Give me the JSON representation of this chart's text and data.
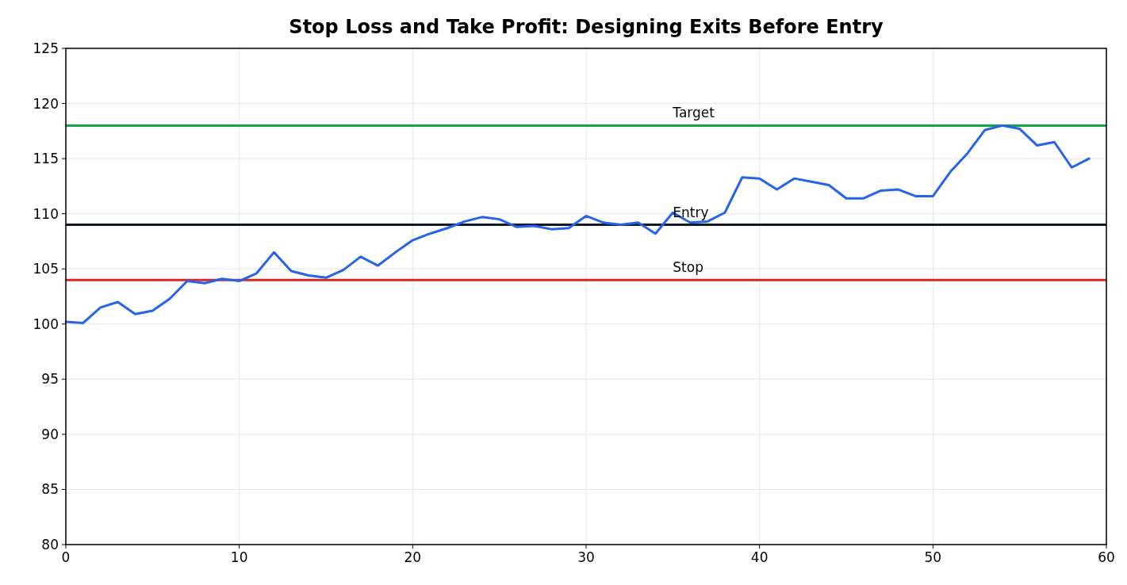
{
  "chart_data": {
    "type": "line",
    "title": "Stop Loss and Take Profit: Designing Exits Before Entry",
    "x": [
      0,
      1,
      2,
      3,
      4,
      5,
      6,
      7,
      8,
      9,
      10,
      11,
      12,
      13,
      14,
      15,
      16,
      17,
      18,
      19,
      20,
      21,
      22,
      23,
      24,
      25,
      26,
      27,
      28,
      29,
      30,
      31,
      32,
      33,
      34,
      35,
      36,
      37,
      38,
      39,
      40,
      41,
      42,
      43,
      44,
      45,
      46,
      47,
      48,
      49,
      50,
      51,
      52,
      53,
      54,
      55,
      56,
      57,
      58,
      59
    ],
    "series": [
      {
        "color": "#2563eb",
        "values": [
          100.2,
          100.1,
          101.5,
          102.0,
          100.9,
          101.2,
          102.3,
          103.9,
          103.7,
          104.1,
          103.9,
          104.6,
          106.5,
          104.8,
          104.4,
          104.2,
          104.9,
          106.1,
          105.3,
          106.5,
          107.6,
          108.2,
          108.7,
          109.3,
          109.7,
          109.5,
          108.8,
          108.9,
          108.6,
          108.7,
          109.8,
          109.2,
          109.0,
          109.2,
          108.2,
          110.1,
          109.2,
          109.3,
          110.1,
          113.3,
          113.2,
          112.2,
          113.2,
          112.9,
          112.6,
          111.4,
          111.4,
          112.1,
          112.2,
          111.6,
          111.6,
          113.8,
          115.5,
          117.6,
          118.0,
          117.7,
          116.2,
          116.5,
          114.2,
          115.0
        ]
      }
    ],
    "ref_lines": [
      {
        "axis": "y",
        "value": 118,
        "label": "Target",
        "color": "#16a34a"
      },
      {
        "axis": "y",
        "value": 109,
        "label": "Entry",
        "color": "#111827"
      },
      {
        "axis": "y",
        "value": 104,
        "label": "Stop",
        "color": "#dc2626"
      }
    ],
    "xlim": [
      0,
      60
    ],
    "xticks": [
      0,
      10,
      20,
      30,
      40,
      50,
      60
    ],
    "ylim": [
      80,
      125
    ],
    "yticks": [
      80,
      85,
      90,
      95,
      100,
      105,
      110,
      115,
      120,
      125
    ],
    "grid": true
  }
}
